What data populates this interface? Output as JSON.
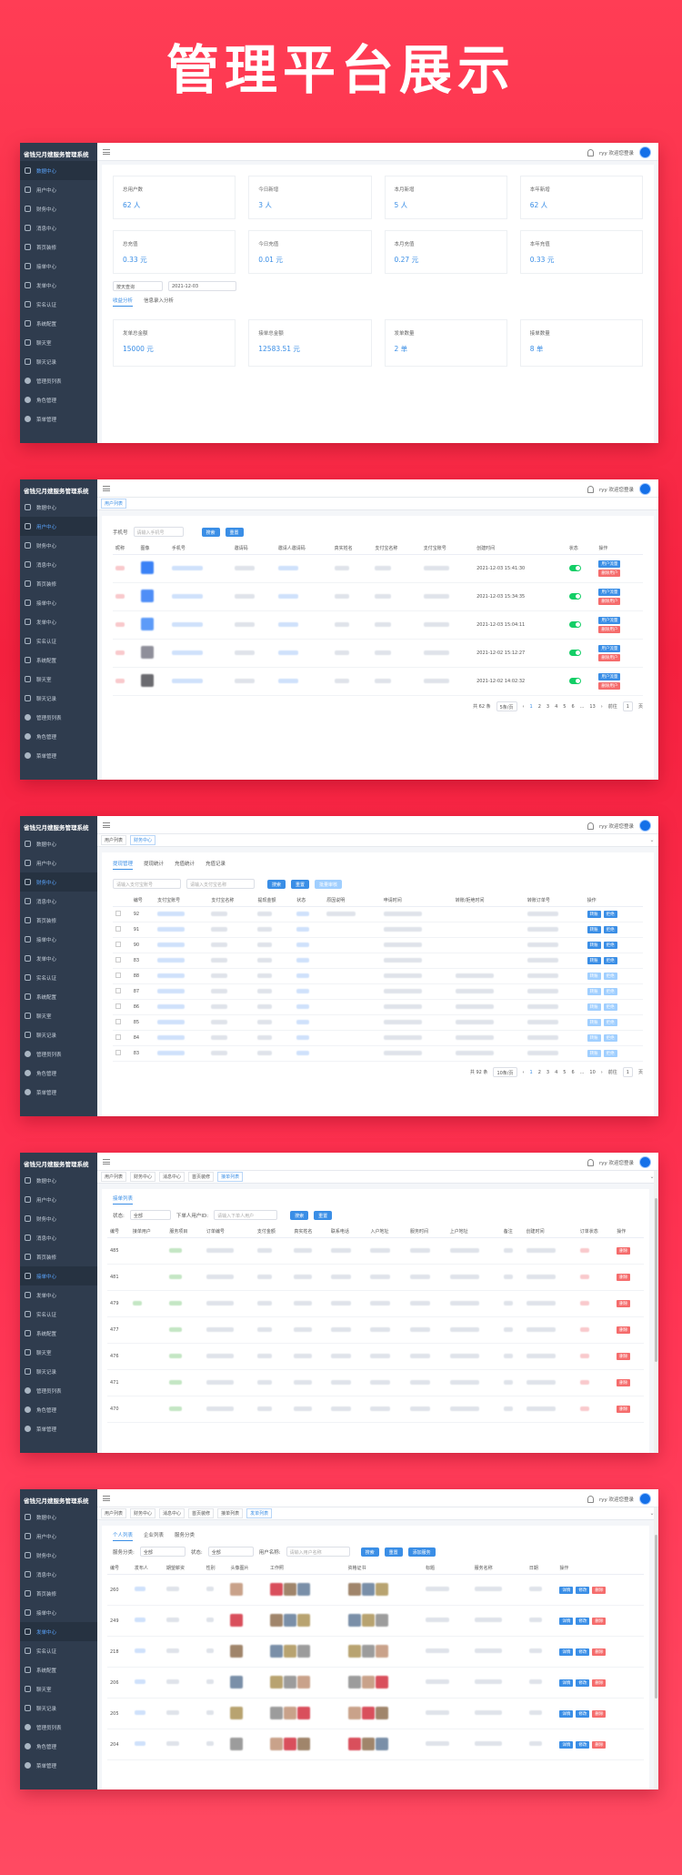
{
  "headline": "管理平台展示",
  "brand": "省钱兄月嫂服务管理系统",
  "header": {
    "greeting": "ryy 欢迎您登录"
  },
  "sidebar": {
    "items": [
      "数据中心",
      "用户中心",
      "财务中心",
      "消息中心",
      "首页装修",
      "接单中心",
      "发单中心",
      "实名认证",
      "系统配置",
      "聊天室",
      "聊天记录",
      "管理员列表",
      "角色管理",
      "菜单管理"
    ]
  },
  "screen1": {
    "stats_row1": [
      {
        "label": "总用户数",
        "value": "62 人"
      },
      {
        "label": "今日新增",
        "value": "3 人"
      },
      {
        "label": "本月新增",
        "value": "5 人"
      },
      {
        "label": "本年新增",
        "value": "62 人"
      }
    ],
    "stats_row2": [
      {
        "label": "总充值",
        "value": "0.33 元"
      },
      {
        "label": "今日充值",
        "value": "0.01 元"
      },
      {
        "label": "本月充值",
        "value": "0.27 元"
      },
      {
        "label": "本年充值",
        "value": "0.33 元"
      }
    ],
    "period_select": "按天查询",
    "date": "2021-12-03",
    "tabs": [
      "收益分析",
      "信息录入分析"
    ],
    "stats_row3": [
      {
        "label": "发单总金额",
        "value": "15000 元"
      },
      {
        "label": "接单总金额",
        "value": "12583.51 元"
      },
      {
        "label": "发单数量",
        "value": "2 单"
      },
      {
        "label": "接单数量",
        "value": "8 单"
      }
    ]
  },
  "screen2": {
    "tabs": [
      "用户列表"
    ],
    "filter_label": "手机号",
    "filter_placeholder": "请输入手机号",
    "search_label": "搜索",
    "reset_label": "重置",
    "columns": [
      "昵称",
      "图像",
      "手机号",
      "邀请码",
      "邀请人邀请码",
      "真实姓名",
      "支付宝名称",
      "支付宝账号",
      "创建时间",
      "状态",
      "操作"
    ],
    "rows": [
      {
        "time": "2021-12-03 15:41:30"
      },
      {
        "time": "2021-12-03 15:34:35"
      },
      {
        "time": "2021-12-03 15:04:11"
      },
      {
        "time": "2021-12-02 15:12:27"
      },
      {
        "time": "2021-12-02 14:02:32"
      }
    ],
    "row_action_1": "用户流量",
    "row_action_2": "删除用户",
    "pager": {
      "total": "共 62 条",
      "size": "5条/页",
      "pages": [
        "1",
        "2",
        "3",
        "4",
        "5",
        "6",
        "...",
        "13"
      ],
      "goto": "前往",
      "goto_page": "1",
      "goto_unit": "页"
    }
  },
  "screen3": {
    "tabs": [
      "用户列表",
      "财务中心"
    ],
    "sub_tabs": [
      "提现管理",
      "提现统计",
      "充值统计",
      "充值记录"
    ],
    "placeholder_1": "请输入支付宝账号",
    "placeholder_2": "请输入支付宝名称",
    "search_label": "搜索",
    "reset_label": "重置",
    "batch_label": "批量审核",
    "columns": [
      "",
      "编号",
      "支付宝账号",
      "支付宝名称",
      "提现金额",
      "状态",
      "原因说明",
      "申请时间",
      "转账/拒绝时间",
      "转账订单号",
      "操作"
    ],
    "rows": [
      "92",
      "91",
      "90",
      "83",
      "88",
      "87",
      "86",
      "85",
      "84",
      "83"
    ],
    "action_1": "转账",
    "action_2": "拒绝",
    "pager": {
      "total": "共 92 条",
      "size": "10条/页",
      "pages": [
        "1",
        "2",
        "3",
        "4",
        "5",
        "6",
        "...",
        "10"
      ],
      "goto": "前往",
      "goto_page": "1",
      "goto_unit": "页"
    }
  },
  "screen4": {
    "tabs": [
      "用户列表",
      "财务中心",
      "消息中心",
      "首页装修",
      "接单列表"
    ],
    "sub_tab": "接单列表",
    "state_label": "状态:",
    "state_value": "全部",
    "user_label": "下单人用户ID:",
    "user_placeholder": "请输入下单人用户",
    "search_label": "搜索",
    "reset_label": "重置",
    "columns": [
      "编号",
      "接单用户",
      "服务项目",
      "订单编号",
      "支付金额",
      "真实姓名",
      "联系电话",
      "入户地址",
      "服务时间",
      "上户地址",
      "备注",
      "创建时间",
      "订单状态",
      "操作"
    ],
    "rows": [
      "485",
      "481",
      "479",
      "477",
      "476",
      "471",
      "470"
    ],
    "action": "删除"
  },
  "screen5": {
    "tabs": [
      "用户列表",
      "财务中心",
      "消息中心",
      "首页装修",
      "接单列表",
      "发单列表"
    ],
    "sub_tabs": [
      "个人列表",
      "企业列表",
      "服务分类"
    ],
    "service_label": "服务分类:",
    "service_value": "全部",
    "state_label": "状态:",
    "state_value": "全部",
    "user_label": "用户名称:",
    "user_placeholder": "请输入用户名称",
    "search_label": "搜索",
    "reset_label": "重置",
    "add_label": "添加服务",
    "columns": [
      "编号",
      "发布人",
      "期望薪资",
      "性别",
      "头像图片",
      "工作照",
      "资格证书",
      "标题",
      "服务名称",
      "日期",
      "操作"
    ],
    "rows": [
      "260",
      "249",
      "218",
      "206",
      "205",
      "204"
    ],
    "action_1": "详情",
    "action_2": "修改",
    "action_3": "删除"
  }
}
